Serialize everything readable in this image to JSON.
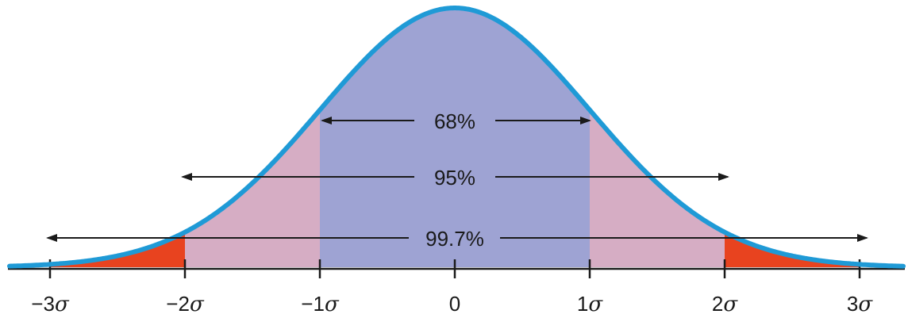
{
  "figure": {
    "colors": {
      "curve": "#1f9ad6",
      "within_1sigma": "#9ea3d3",
      "between_1_2sigma": "#d6adc4",
      "between_2_3sigma": "#e8431f",
      "axis": "#1a1a1a",
      "arrows": "#1a1a1a"
    },
    "labels": {
      "pct_68": "68%",
      "pct_95": "95%",
      "pct_997": "99.7%"
    },
    "ticks": [
      {
        "value": -3,
        "prefix": "−3",
        "sigma": "σ"
      },
      {
        "value": -2,
        "prefix": "−2",
        "sigma": "σ"
      },
      {
        "value": -1,
        "prefix": "−1",
        "sigma": "σ"
      },
      {
        "value": 0,
        "prefix": "0",
        "sigma": ""
      },
      {
        "value": 1,
        "prefix": "1",
        "sigma": "σ"
      },
      {
        "value": 2,
        "prefix": "2",
        "sigma": "σ"
      },
      {
        "value": 3,
        "prefix": "3",
        "sigma": "σ"
      }
    ]
  }
}
